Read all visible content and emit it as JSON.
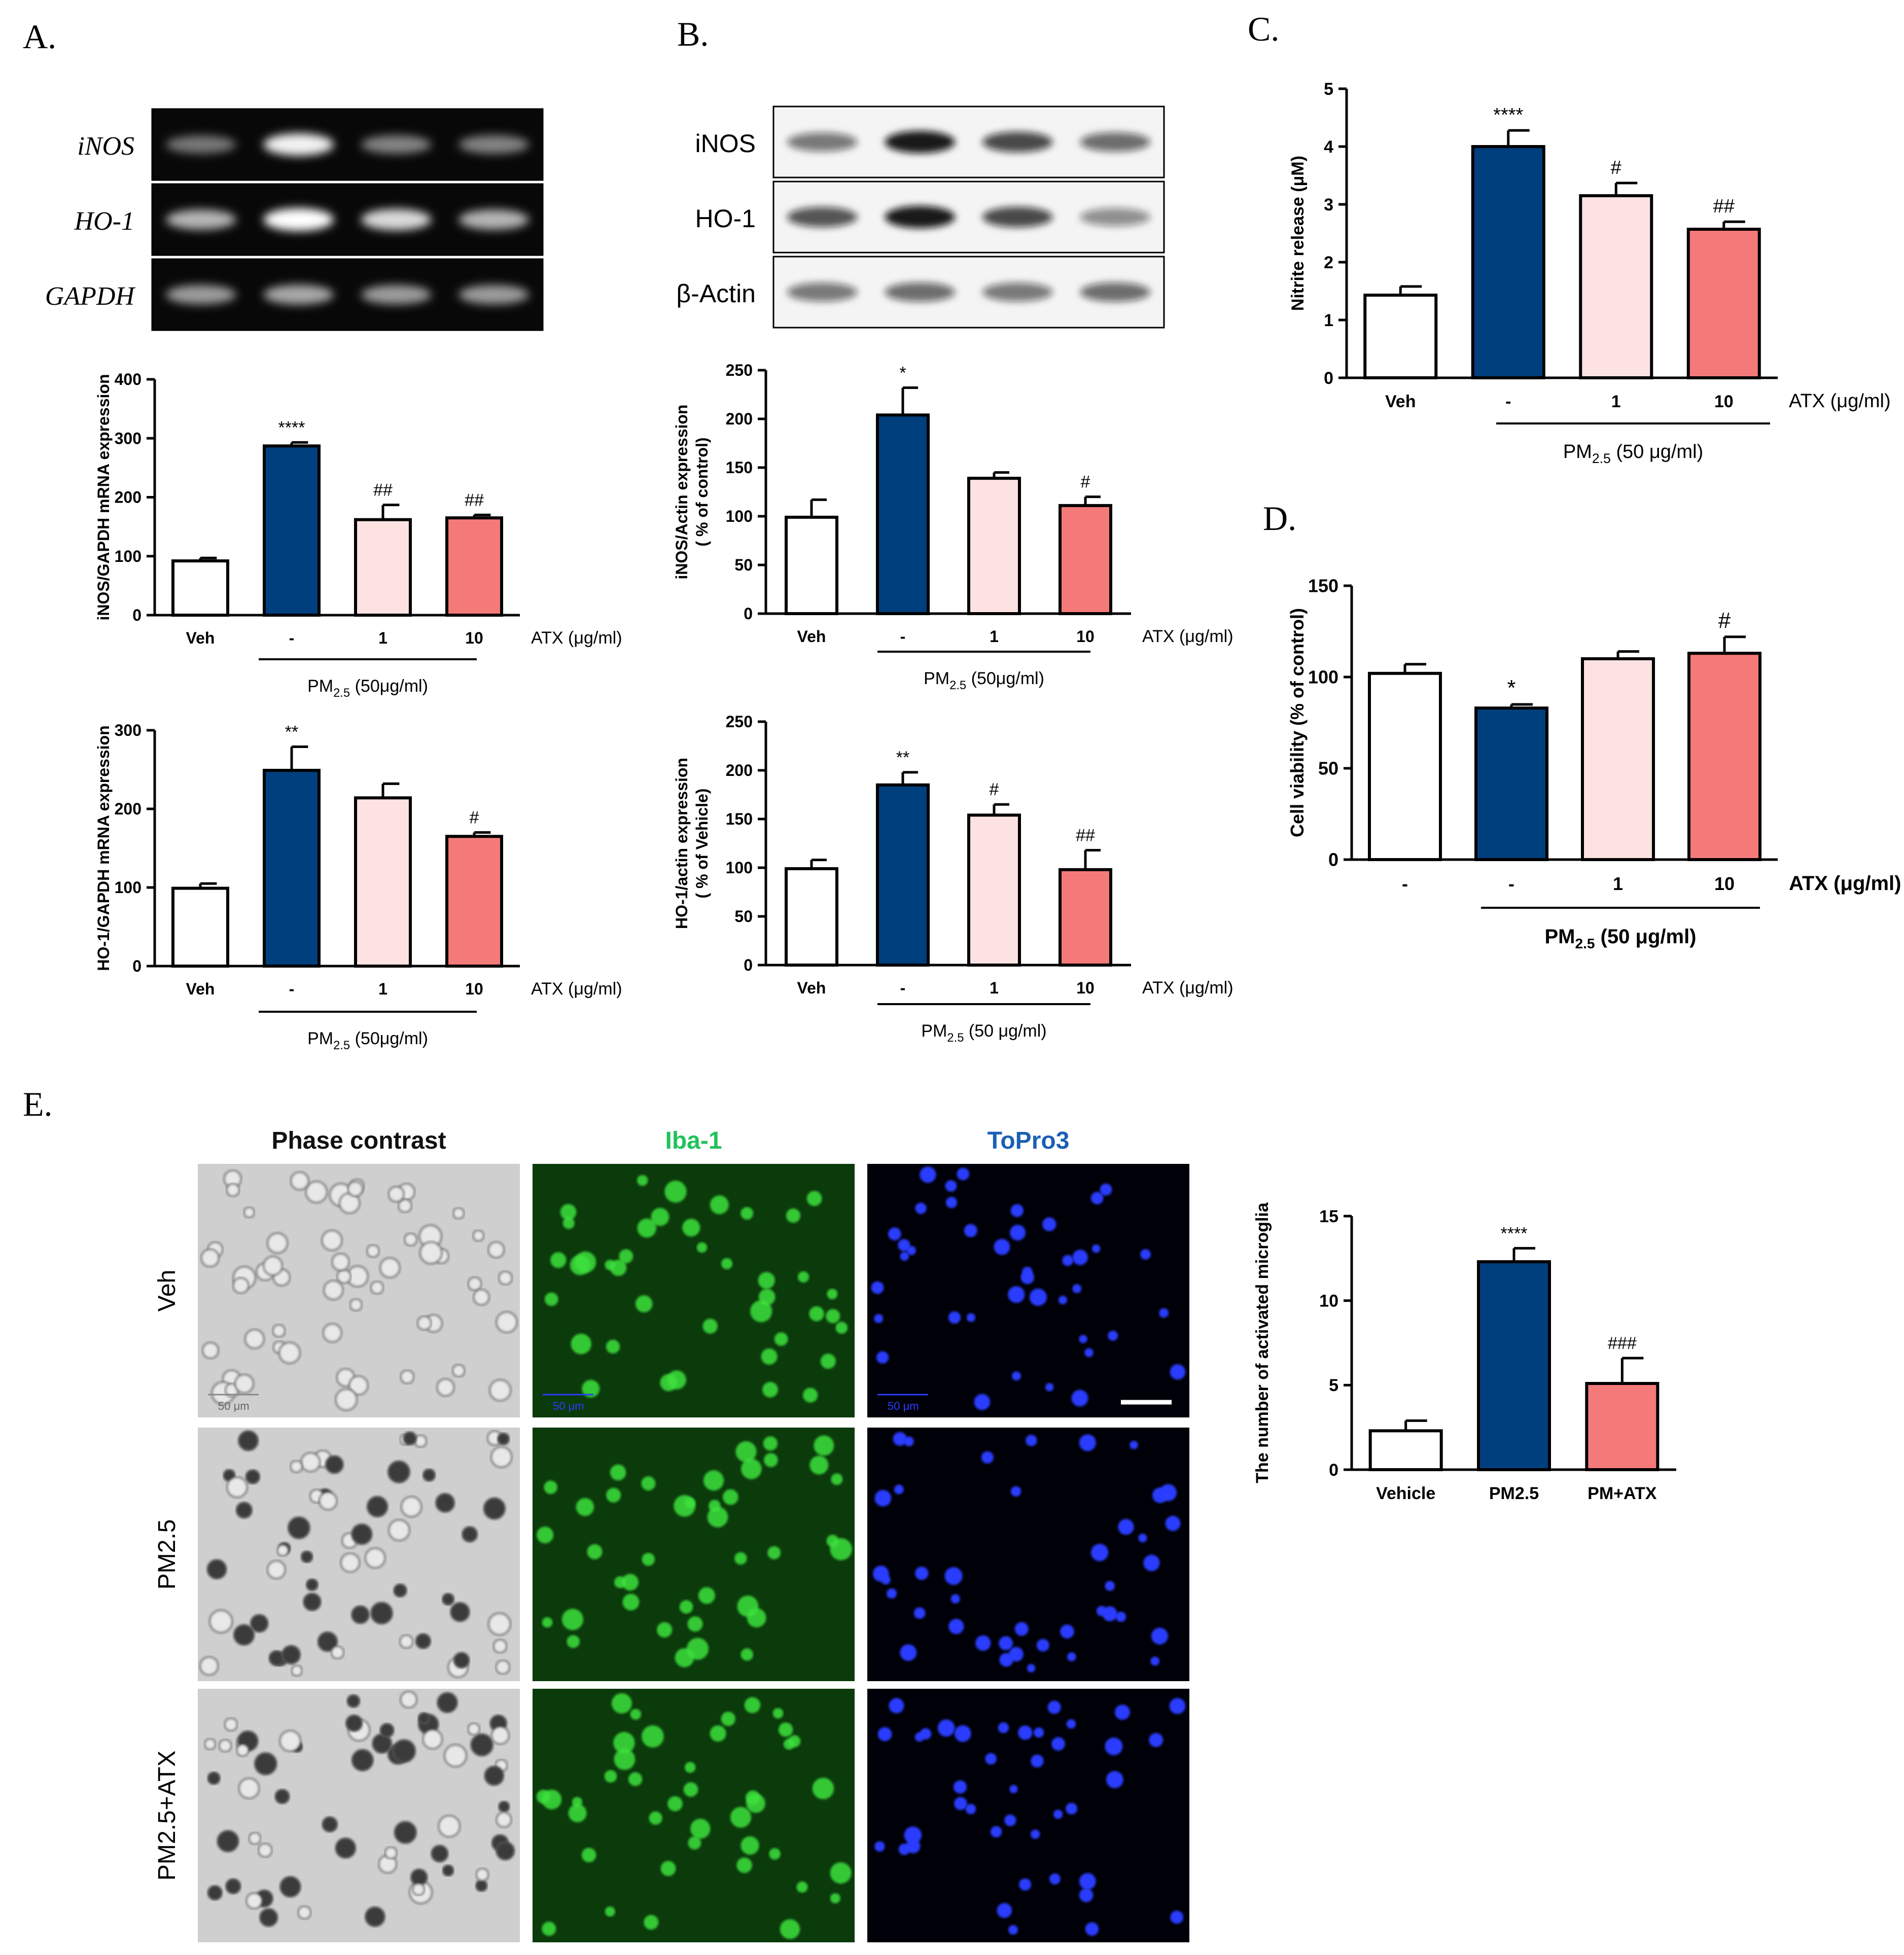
{
  "panel_labels": {
    "A": "A.",
    "B": "B.",
    "C": "C.",
    "D": "D.",
    "E": "E."
  },
  "colors": {
    "veh": "#ffffff",
    "pm": "#003f7d",
    "atx1": "#fde2e2",
    "atx10": "#f47a7a",
    "stroke": "#000000",
    "iba": "#21c25a",
    "topro": "#1a5fb4"
  },
  "gels": {
    "A": {
      "rows": [
        "iNOS",
        "HO-1",
        "GAPDH"
      ],
      "intensity": [
        [
          0.45,
          0.95,
          0.5,
          0.5
        ],
        [
          0.7,
          1.0,
          0.85,
          0.7
        ],
        [
          0.6,
          0.65,
          0.6,
          0.6
        ]
      ]
    },
    "B": {
      "rows": [
        "iNOS",
        "HO-1",
        "β-Actin"
      ],
      "intensity": [
        [
          0.55,
          0.95,
          0.75,
          0.6
        ],
        [
          0.7,
          0.95,
          0.75,
          0.45
        ],
        [
          0.55,
          0.6,
          0.55,
          0.6
        ]
      ]
    }
  },
  "chart_data": [
    {
      "id": "A1",
      "type": "bar",
      "categories": [
        "Veh",
        "-",
        "1",
        "10"
      ],
      "values": [
        92,
        287,
        162,
        165
      ],
      "errors": [
        5,
        6,
        25,
        5
      ],
      "annotations": [
        "",
        "****",
        "##",
        "##"
      ],
      "ylabel": "iNOS/GAPDH mRNA expression",
      "yticks": [
        "0",
        "100",
        "200",
        "300",
        "400"
      ],
      "ylim": [
        0,
        400
      ],
      "treatment": "ATX (μg/ml)",
      "group_label": "PM",
      "group_sub": "2.5",
      "group_tail": " (50μg/ml)"
    },
    {
      "id": "A2",
      "type": "bar",
      "categories": [
        "Veh",
        "-",
        "1",
        "10"
      ],
      "values": [
        99,
        249,
        214,
        165
      ],
      "errors": [
        6,
        30,
        18,
        5
      ],
      "annotations": [
        "",
        "**",
        "",
        "#"
      ],
      "ylabel": "HO-1/GAPDH mRNA expression",
      "yticks": [
        "0",
        "100",
        "200",
        "300"
      ],
      "ylim": [
        0,
        300
      ],
      "treatment": "ATX (μg/ml)",
      "group_label": "PM",
      "group_sub": "2.5",
      "group_tail": " (50μg/ml)"
    },
    {
      "id": "B1",
      "type": "bar",
      "categories": [
        "Veh",
        "-",
        "1",
        "10"
      ],
      "values": [
        99,
        204,
        139,
        111
      ],
      "errors": [
        18,
        28,
        6,
        9
      ],
      "annotations": [
        "",
        "*",
        "",
        "#"
      ],
      "ylabel": "iNOS/Actin expression\n( % of  control)",
      "yticks": [
        "0",
        "50",
        "100",
        "150",
        "200",
        "250"
      ],
      "ylim": [
        0,
        250
      ],
      "treatment": "ATX (μg/ml)",
      "group_label": "PM",
      "group_sub": "2.5",
      "group_tail": " (50μg/ml)"
    },
    {
      "id": "B2",
      "type": "bar",
      "categories": [
        "Veh",
        "-",
        "1",
        "10"
      ],
      "values": [
        99,
        185,
        154,
        98
      ],
      "errors": [
        9,
        13,
        11,
        20
      ],
      "annotations": [
        "",
        "**",
        "#",
        "##"
      ],
      "ylabel": "HO-1/actin expression\n( % of Vehicle)",
      "yticks": [
        "0",
        "50",
        "100",
        "150",
        "200",
        "250"
      ],
      "ylim": [
        0,
        250
      ],
      "treatment": "ATX (μg/ml)",
      "group_label": "PM",
      "group_sub": "2.5",
      "group_tail": " (50 μg/ml)"
    },
    {
      "id": "C",
      "type": "bar",
      "categories": [
        "Veh",
        "-",
        "1",
        "10"
      ],
      "values": [
        1.43,
        4.0,
        3.15,
        2.57
      ],
      "errors": [
        0.15,
        0.28,
        0.22,
        0.13
      ],
      "annotations": [
        "",
        "****",
        "#",
        "##"
      ],
      "ylabel": "Nitrite release (μM)",
      "yticks": [
        "0",
        "1",
        "2",
        "3",
        "4",
        "5"
      ],
      "ylim": [
        0,
        5
      ],
      "treatment": "ATX (μg/ml)",
      "group_label": "PM",
      "group_sub": "2.5",
      "group_tail": " (50 μg/ml)"
    },
    {
      "id": "D",
      "type": "bar",
      "categories": [
        "-",
        "-",
        "1",
        "10"
      ],
      "values": [
        102,
        83,
        110,
        113
      ],
      "errors": [
        5,
        2,
        4,
        9
      ],
      "annotations": [
        "",
        "*",
        "",
        "#"
      ],
      "ylabel": "Cell viability (% of control)",
      "yticks": [
        "0",
        "50",
        "100",
        "150"
      ],
      "ylim": [
        0,
        150
      ],
      "treatment": "ATX (μg/ml)",
      "group_label": "PM",
      "group_sub": "2.5",
      "group_tail": " (50 μg/ml)"
    },
    {
      "id": "E",
      "type": "bar",
      "categories": [
        "Vehicle",
        "PM2.5",
        "PM+ATX"
      ],
      "values": [
        2.3,
        12.3,
        5.1
      ],
      "errors": [
        0.6,
        0.8,
        1.5
      ],
      "annotations": [
        "",
        "****",
        "###"
      ],
      "ylabel": "The number of activated microglia",
      "yticks": [
        "0",
        "5",
        "10",
        "15"
      ],
      "ylim": [
        0,
        15
      ]
    }
  ],
  "microscopy": {
    "col_headers": [
      "Phase contrast",
      "Iba-1",
      "ToPro3"
    ],
    "row_labels": [
      "Veh",
      "PM2.5",
      "PM2.5+ATX"
    ],
    "scale_bar": "50 μm"
  }
}
